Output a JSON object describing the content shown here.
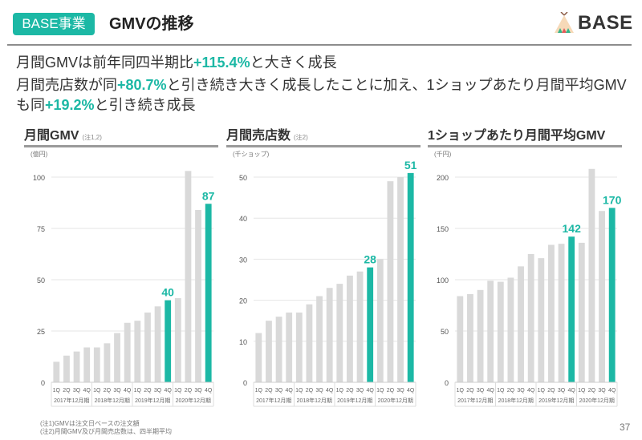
{
  "header": {
    "badge": "BASE事業",
    "title": "GMVの推移",
    "logo_text": "BASE",
    "logo_icon": "teepee-icon"
  },
  "summary": {
    "line1": {
      "pre": "月間GMVは前年同四半期比",
      "hl": "+115.4%",
      "post": "と大きく成長"
    },
    "line2": {
      "pre": "月間売店数が同",
      "hl": "+80.7%",
      "mid": "と引き続き大きく成長したことに加え、1ショップあたり月間平均GMV",
      "pre2": "も同",
      "hl2": "+19.2%",
      "post": "と引き続き成長"
    }
  },
  "colors": {
    "accent": "#1cb8a5",
    "bar": "#d9d9d9",
    "grid": "#e6e6e6"
  },
  "footnotes": [
    "(注1)GMVは注文日ベースの注文額",
    "(注2)月間GMV及び月間売店数は、四半期平均"
  ],
  "page_number": "37",
  "chart_data": [
    {
      "type": "bar",
      "title": "月間GMV",
      "note": "(注1,2)",
      "unit": "(億円)",
      "ylim": [
        0,
        100
      ],
      "yticks": [
        0,
        25,
        50,
        75,
        100
      ],
      "quarters": [
        "1Q",
        "2Q",
        "3Q",
        "4Q",
        "1Q",
        "2Q",
        "3Q",
        "4Q",
        "1Q",
        "2Q",
        "3Q",
        "4Q",
        "1Q",
        "2Q",
        "3Q",
        "4Q"
      ],
      "periods": [
        "2017年12月期",
        "2018年12月期",
        "2019年12月期",
        "2020年12月期"
      ],
      "values": [
        10,
        13,
        15,
        17,
        17,
        19,
        24,
        29,
        30,
        34,
        37,
        40,
        41,
        103,
        84,
        87
      ],
      "highlight": [
        11,
        15
      ],
      "labels": {
        "11": "40",
        "15": "87"
      },
      "grid": true
    },
    {
      "type": "bar",
      "title": "月間売店数",
      "note": "(注2)",
      "unit": "(千ショップ)",
      "ylim": [
        0,
        50
      ],
      "yticks": [
        0,
        10,
        20,
        30,
        40,
        50
      ],
      "quarters": [
        "1Q",
        "2Q",
        "3Q",
        "4Q",
        "1Q",
        "2Q",
        "3Q",
        "4Q",
        "1Q",
        "2Q",
        "3Q",
        "4Q",
        "1Q",
        "2Q",
        "3Q",
        "4Q"
      ],
      "periods": [
        "2017年12月期",
        "2018年12月期",
        "2019年12月期",
        "2020年12月期"
      ],
      "values": [
        12,
        15,
        16,
        17,
        17,
        19,
        21,
        23,
        24,
        26,
        27,
        28,
        30,
        49,
        50,
        51
      ],
      "highlight": [
        11,
        15
      ],
      "labels": {
        "11": "28",
        "15": "51"
      },
      "grid": true
    },
    {
      "type": "bar",
      "title": "1ショップあたり月間平均GMV",
      "note": "",
      "unit": "(千円)",
      "ylim": [
        0,
        200
      ],
      "yticks": [
        0,
        50,
        100,
        150,
        200
      ],
      "quarters": [
        "1Q",
        "2Q",
        "3Q",
        "4Q",
        "1Q",
        "2Q",
        "3Q",
        "4Q",
        "1Q",
        "2Q",
        "3Q",
        "4Q",
        "1Q",
        "2Q",
        "3Q",
        "4Q"
      ],
      "periods": [
        "2017年12月期",
        "2018年12月期",
        "2019年12月期",
        "2020年12月期"
      ],
      "values": [
        84,
        86,
        90,
        99,
        98,
        102,
        113,
        125,
        121,
        134,
        135,
        142,
        136,
        208,
        167,
        170
      ],
      "highlight": [
        11,
        15
      ],
      "labels": {
        "11": "142",
        "15": "170"
      },
      "grid": true
    }
  ]
}
